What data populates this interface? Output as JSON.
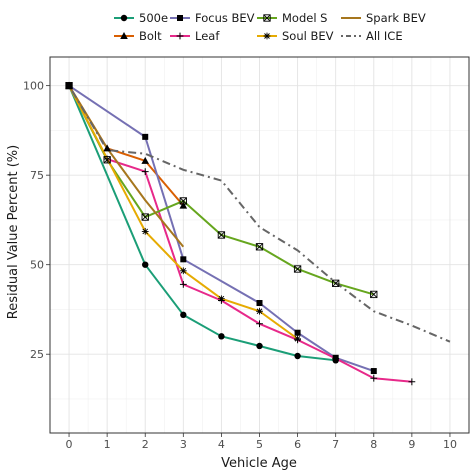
{
  "chart_data": {
    "type": "line",
    "title": "",
    "xlabel": "Vehicle Age",
    "ylabel": "Residual Value Percent (%)",
    "xlim": [
      -0.5,
      10.5
    ],
    "ylim": [
      3,
      108
    ],
    "x_ticks": [
      0,
      1,
      2,
      3,
      4,
      5,
      6,
      7,
      8,
      9,
      10
    ],
    "x_tick_labels": [
      "0",
      "1",
      "2",
      "3",
      "4",
      "5",
      "6",
      "7",
      "8",
      "9",
      "10"
    ],
    "y_ticks": [
      25,
      50,
      75,
      100
    ],
    "y_tick_labels": [
      "25",
      "50",
      "75",
      "100"
    ],
    "grid": true,
    "legend_position": "top",
    "series": [
      {
        "name": "500e",
        "color": "#1b9e77",
        "marker": "circle",
        "dash": "solid",
        "points": [
          [
            0,
            100
          ],
          [
            2,
            50
          ],
          [
            3,
            36
          ],
          [
            4,
            30
          ],
          [
            5,
            27.3
          ],
          [
            6,
            24.5
          ],
          [
            7,
            23.3
          ]
        ]
      },
      {
        "name": "Bolt",
        "color": "#d95f02",
        "marker": "triangle",
        "dash": "solid",
        "points": [
          [
            0,
            100
          ],
          [
            1,
            82.5
          ],
          [
            2,
            79
          ],
          [
            3,
            66.5
          ]
        ]
      },
      {
        "name": "Focus BEV",
        "color": "#7570b3",
        "marker": "square",
        "dash": "solid",
        "points": [
          [
            0,
            100
          ],
          [
            2,
            85.7
          ],
          [
            3,
            51.5
          ],
          [
            5,
            39.3
          ],
          [
            6,
            31
          ],
          [
            7,
            24
          ],
          [
            8,
            20.3
          ]
        ]
      },
      {
        "name": "Leaf",
        "color": "#e7298a",
        "marker": "plus",
        "dash": "solid",
        "points": [
          [
            0,
            100
          ],
          [
            1,
            79.5
          ],
          [
            2,
            76
          ],
          [
            3,
            44.5
          ],
          [
            4,
            40
          ],
          [
            5,
            33.5
          ],
          [
            6,
            29
          ],
          [
            7,
            23.8
          ],
          [
            8,
            18.3
          ],
          [
            9,
            17.3
          ]
        ]
      },
      {
        "name": "Model S",
        "color": "#66a61e",
        "marker": "boxx",
        "dash": "solid",
        "points": [
          [
            0,
            100
          ],
          [
            1,
            79.3
          ],
          [
            2,
            63.3
          ],
          [
            3,
            67.8
          ],
          [
            4,
            58.3
          ],
          [
            5,
            55
          ],
          [
            6,
            48.8
          ],
          [
            7,
            44.8
          ],
          [
            8,
            41.7
          ]
        ]
      },
      {
        "name": "Soul BEV",
        "color": "#e6ab02",
        "marker": "asterisk",
        "dash": "solid",
        "points": [
          [
            0,
            100
          ],
          [
            2,
            59.3
          ],
          [
            3,
            48.3
          ],
          [
            4,
            40.5
          ],
          [
            5,
            37
          ],
          [
            6,
            29.3
          ]
        ]
      },
      {
        "name": "Spark BEV",
        "color": "#a6761d",
        "marker": "none",
        "dash": "solid",
        "points": [
          [
            0,
            100
          ],
          [
            1,
            82.5
          ],
          [
            2,
            68
          ],
          [
            3,
            55
          ]
        ]
      },
      {
        "name": "All ICE",
        "color": "#666666",
        "marker": "none",
        "dash": "dotdash",
        "points": [
          [
            0,
            100
          ],
          [
            1,
            82
          ],
          [
            2,
            81
          ],
          [
            3,
            76.5
          ],
          [
            4,
            73.5
          ],
          [
            5,
            60.5
          ],
          [
            6,
            54
          ],
          [
            7,
            45
          ],
          [
            8,
            37
          ],
          [
            9,
            33
          ],
          [
            10,
            28.5
          ]
        ]
      }
    ],
    "legend_rows": [
      [
        "500e",
        "Focus BEV",
        "Model S",
        "Spark BEV"
      ],
      [
        "Bolt",
        "Leaf",
        "Soul BEV",
        "All ICE"
      ]
    ]
  }
}
